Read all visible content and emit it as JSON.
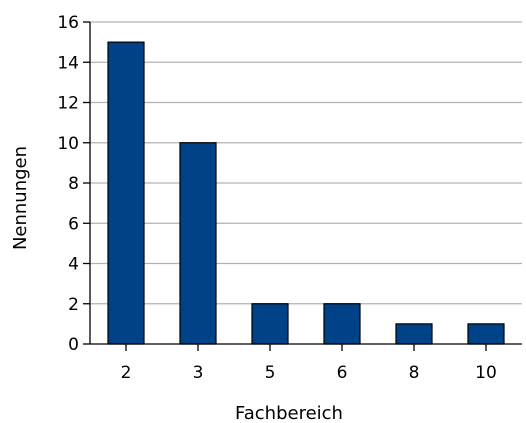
{
  "chart_data": {
    "type": "bar",
    "categories": [
      "2",
      "3",
      "5",
      "6",
      "8",
      "10"
    ],
    "values": [
      15,
      10,
      2,
      2,
      1,
      1
    ],
    "xlabel": "Fachbereich",
    "ylabel": "Nennungen",
    "ylim": [
      0,
      16
    ],
    "yticks": [
      "0",
      "2",
      "4",
      "6",
      "8",
      "10",
      "12",
      "14",
      "16"
    ],
    "grid": "horizontal",
    "legend": "none",
    "bar_color": "#004288",
    "bar_edge_color": "#000000",
    "grid_color": "#b3b3b3"
  }
}
